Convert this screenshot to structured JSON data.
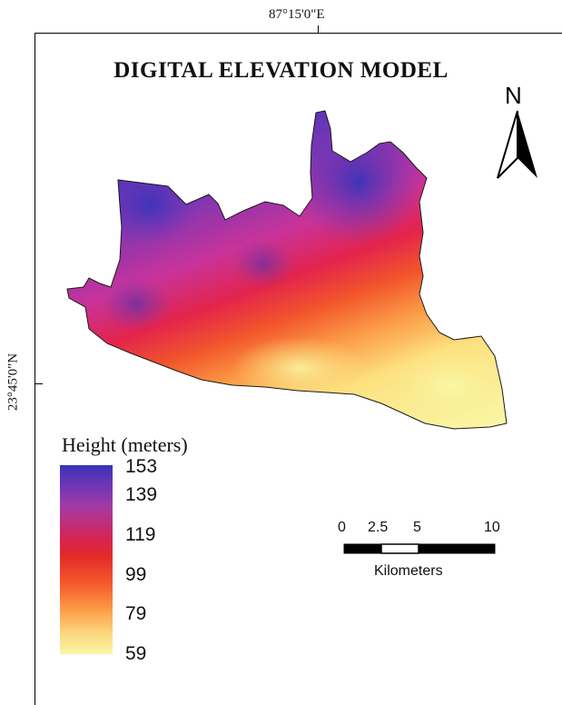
{
  "title": "DIGITAL ELEVATION MODEL",
  "graticule": {
    "longitude": "87°15'0\"E",
    "latitude": "23°45'0\"N"
  },
  "north": {
    "letter": "N",
    "icon": "north-arrow-icon"
  },
  "legend": {
    "title": "Height (meters)",
    "values": [
      "153",
      "139",
      "119",
      "99",
      "79",
      "59"
    ],
    "colors": [
      "#3a33b8",
      "#a43aa6",
      "#e32a2a",
      "#f4572a",
      "#fb9a46",
      "#f9f7a6"
    ]
  },
  "scale_bar": {
    "labels": [
      "0",
      "2.5",
      "5",
      "10"
    ],
    "unit": "Kilometers"
  },
  "colors": {
    "high": "#3a33b8",
    "mid": "#e32a2a",
    "low": "#f9f7a6"
  }
}
